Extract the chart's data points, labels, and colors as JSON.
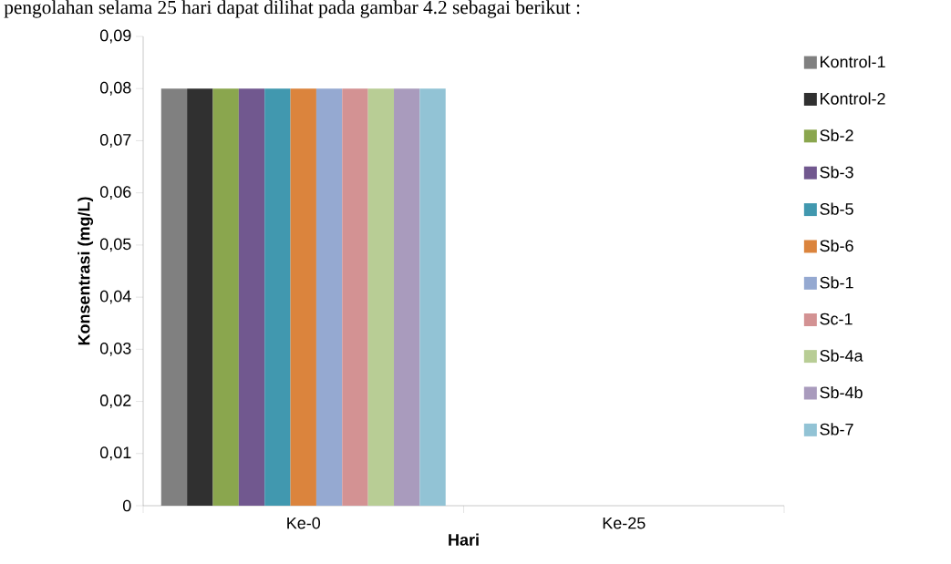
{
  "chart_data": {
    "type": "bar",
    "annotations": [
      "pengolahan selama 25 hari dapat dilihat pada gambar 4.2 sebagai berikut :"
    ],
    "xlabel": "Hari",
    "ylabel": "Konsentrasi (mg/L)",
    "categories": [
      "Ke-0",
      "Ke-25"
    ],
    "series": [
      {
        "name": "Kontrol-1",
        "color": "#808080",
        "values": [
          0.08,
          0
        ]
      },
      {
        "name": "Kontrol-2",
        "color": "#303030",
        "values": [
          0.08,
          0
        ]
      },
      {
        "name": "Sb-2",
        "color": "#8aa64e",
        "values": [
          0.08,
          0
        ]
      },
      {
        "name": "Sb-3",
        "color": "#71588f",
        "values": [
          0.08,
          0
        ]
      },
      {
        "name": "Sb-5",
        "color": "#4198af",
        "values": [
          0.08,
          0
        ]
      },
      {
        "name": "Sb-6",
        "color": "#db843d",
        "values": [
          0.08,
          0
        ]
      },
      {
        "name": "Sb-1",
        "color": "#95a9d1",
        "values": [
          0.08,
          0
        ]
      },
      {
        "name": "Sc-1",
        "color": "#d39293",
        "values": [
          0.08,
          0
        ]
      },
      {
        "name": "Sb-4a",
        "color": "#b8cd95",
        "values": [
          0.08,
          0
        ]
      },
      {
        "name": "Sb-4b",
        "color": "#a99bbd",
        "values": [
          0.08,
          0
        ]
      },
      {
        "name": "Sb-7",
        "color": "#92c3d5",
        "values": [
          0.08,
          0
        ]
      }
    ],
    "ylim": [
      0,
      0.09
    ],
    "yticks": [
      0,
      {
        "value": 0.01,
        "label": "0,01"
      },
      {
        "value": 0.02,
        "label": "0,02"
      },
      {
        "value": 0.03,
        "label": "0,03"
      },
      {
        "value": 0.04,
        "label": "0,04"
      },
      {
        "value": 0.05,
        "label": "0,05"
      },
      {
        "value": 0.06,
        "label": "0,06"
      },
      {
        "value": 0.07,
        "label": "0,07"
      },
      {
        "value": 0.08,
        "label": "0,08"
      },
      {
        "value": 0.09,
        "label": "0,09"
      }
    ],
    "grid": false,
    "legend": "right"
  }
}
